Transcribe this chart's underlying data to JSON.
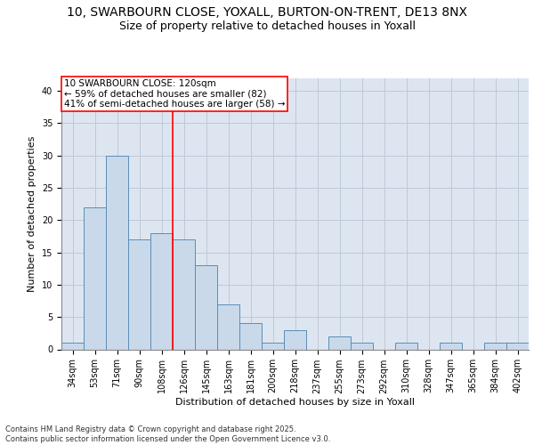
{
  "title_line1": "10, SWARBOURN CLOSE, YOXALL, BURTON-ON-TRENT, DE13 8NX",
  "title_line2": "Size of property relative to detached houses in Yoxall",
  "xlabel": "Distribution of detached houses by size in Yoxall",
  "ylabel": "Number of detached properties",
  "categories": [
    "34sqm",
    "53sqm",
    "71sqm",
    "90sqm",
    "108sqm",
    "126sqm",
    "145sqm",
    "163sqm",
    "181sqm",
    "200sqm",
    "218sqm",
    "237sqm",
    "255sqm",
    "273sqm",
    "292sqm",
    "310sqm",
    "328sqm",
    "347sqm",
    "365sqm",
    "384sqm",
    "402sqm"
  ],
  "values": [
    1,
    22,
    30,
    17,
    18,
    17,
    13,
    7,
    4,
    1,
    3,
    0,
    2,
    1,
    0,
    1,
    0,
    1,
    0,
    1,
    1
  ],
  "bar_color": "#c9d9ea",
  "bar_edge_color": "#5b8db8",
  "grid_color": "#c0c8d8",
  "background_color": "#dde6f0",
  "annotation_box_text": "10 SWARBOURN CLOSE: 120sqm\n← 59% of detached houses are smaller (82)\n41% of semi-detached houses are larger (58) →",
  "annotation_box_color": "white",
  "annotation_box_edge_color": "red",
  "vline_x": 4.5,
  "vline_color": "red",
  "ylim": [
    0,
    42
  ],
  "yticks": [
    0,
    5,
    10,
    15,
    20,
    25,
    30,
    35,
    40
  ],
  "footnote": "Contains HM Land Registry data © Crown copyright and database right 2025.\nContains public sector information licensed under the Open Government Licence v3.0.",
  "annotation_fontsize": 7.5,
  "title_fontsize1": 10,
  "title_fontsize2": 9,
  "ylabel_fontsize": 8,
  "xlabel_fontsize": 8,
  "tick_fontsize": 7,
  "footnote_fontsize": 6
}
